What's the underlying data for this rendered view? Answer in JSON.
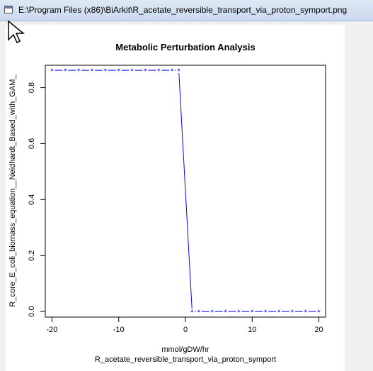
{
  "window": {
    "title": "E:\\Program Files (x86)\\BiArkit\\R_acetate_reversible_transport_via_proton_symport.png",
    "icon": "window-icon"
  },
  "cursor": {
    "icon": "mouse-pointer-icon"
  },
  "chart_data": {
    "type": "line",
    "title": "Metabolic Perturbation Analysis",
    "xlabel": "mmol/gDW/hr",
    "xlabel2": "R_acetate_reversible_transport_via_proton_symport",
    "ylabel": "R_core_E_coli_biomass_equation__Neidhardt_Based_with_GAM_",
    "xlim": [
      -21,
      21
    ],
    "ylim": [
      -0.02,
      0.88
    ],
    "xticks": [
      -20,
      -10,
      0,
      10,
      20
    ],
    "yticks": [
      0.0,
      0.2,
      0.4,
      0.6,
      0.8
    ],
    "grid": false,
    "line_style": "dashed with asterisk markers",
    "series": [
      {
        "color": "#0000ff",
        "marker": "*",
        "x": [
          -20,
          -18,
          -16,
          -14,
          -12,
          -10,
          -8,
          -6,
          -4,
          -2,
          -1,
          1,
          2,
          4,
          6,
          8,
          10,
          12,
          14,
          16,
          18,
          20
        ],
        "y": [
          0.862,
          0.862,
          0.862,
          0.862,
          0.862,
          0.862,
          0.862,
          0.862,
          0.862,
          0.862,
          0.862,
          0.0,
          0.0,
          0.0,
          0.0,
          0.0,
          0.0,
          0.0,
          0.0,
          0.0,
          0.0,
          0.0
        ]
      }
    ]
  }
}
